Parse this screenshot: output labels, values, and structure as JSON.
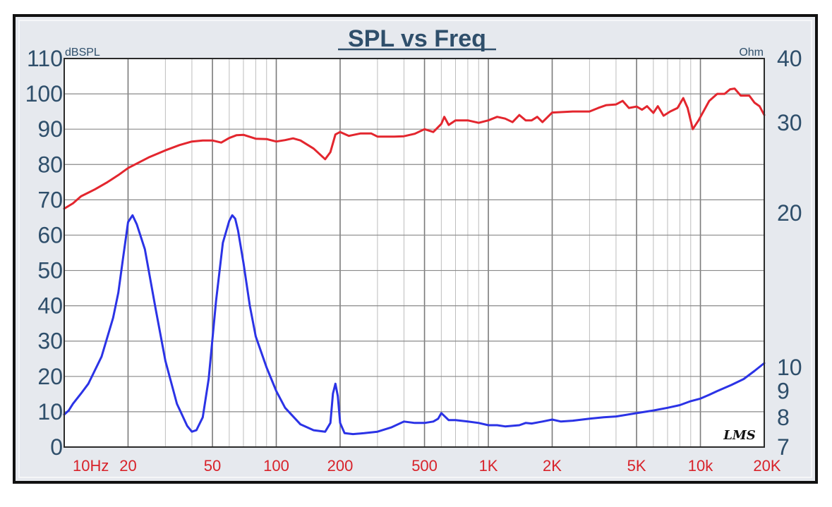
{
  "chart_data": {
    "type": "line",
    "title": "SPL vs Freq",
    "x_scale": "log",
    "xlim": [
      10,
      20000
    ],
    "x_ticks": [
      {
        "value": 10,
        "label": "10Hz"
      },
      {
        "value": 20,
        "label": "20"
      },
      {
        "value": 50,
        "label": "50"
      },
      {
        "value": 100,
        "label": "100"
      },
      {
        "value": 200,
        "label": "200"
      },
      {
        "value": 500,
        "label": "500"
      },
      {
        "value": 1000,
        "label": "1K"
      },
      {
        "value": 2000,
        "label": "2K"
      },
      {
        "value": 5000,
        "label": "5K"
      },
      {
        "value": 10000,
        "label": "10k"
      },
      {
        "value": 20000,
        "label": "20K"
      }
    ],
    "y_left": {
      "unit": "dBSPL",
      "ylim": [
        0,
        110
      ],
      "ticks": [
        0,
        10,
        20,
        30,
        40,
        50,
        60,
        70,
        80,
        90,
        100,
        110
      ]
    },
    "y_right": {
      "unit": "Ohm",
      "scale": "log",
      "ylim": [
        7,
        40
      ],
      "ticks": [
        7,
        8,
        9,
        10,
        20,
        30,
        40
      ]
    },
    "grid": true,
    "logo_text": "LMS",
    "series": [
      {
        "axis": "left",
        "color": "#e3262e",
        "x": [
          10,
          11,
          12,
          14,
          16,
          18,
          20,
          25,
          30,
          35,
          40,
          45,
          50,
          55,
          60,
          65,
          70,
          80,
          90,
          100,
          110,
          120,
          130,
          150,
          170,
          180,
          190,
          200,
          220,
          250,
          280,
          300,
          330,
          360,
          400,
          450,
          500,
          550,
          600,
          620,
          650,
          700,
          800,
          900,
          1000,
          1100,
          1200,
          1300,
          1400,
          1500,
          1600,
          1700,
          1800,
          2000,
          2500,
          3000,
          3300,
          3600,
          4000,
          4300,
          4600,
          5000,
          5300,
          5600,
          6000,
          6300,
          6700,
          7200,
          7800,
          8300,
          8700,
          9200,
          9800,
          11000,
          12000,
          13000,
          13800,
          14500,
          15500,
          17000,
          18000,
          19000,
          20000
        ],
        "y": [
          67.5,
          69,
          71,
          73,
          75,
          77,
          79,
          82,
          84,
          85.5,
          86.5,
          86.8,
          86.8,
          86.2,
          87.5,
          88.3,
          88.4,
          87.3,
          87.2,
          86.5,
          86.9,
          87.4,
          86.8,
          84.5,
          81.5,
          83.5,
          88.5,
          89.2,
          88.1,
          88.8,
          88.8,
          87.9,
          87.9,
          87.9,
          88,
          88.7,
          90,
          89.2,
          91.5,
          93.5,
          91.2,
          92.5,
          92.5,
          91.8,
          92.5,
          93.5,
          93,
          92,
          94,
          92.5,
          92.5,
          93.5,
          92,
          94.7,
          95,
          95,
          96,
          96.8,
          97,
          98,
          96,
          96.4,
          95.5,
          96.5,
          94.6,
          96.5,
          93.8,
          95,
          96,
          98.8,
          96,
          90,
          92.5,
          98,
          100,
          100,
          101.3,
          101.5,
          99.5,
          99.5,
          97.5,
          96.5,
          94
        ]
      },
      {
        "axis": "right",
        "color": "#2b33e6",
        "x": [
          10,
          10.5,
          11,
          12,
          13,
          15,
          17,
          18,
          19,
          20,
          21,
          22,
          24,
          27,
          30,
          34,
          38,
          40,
          42,
          45,
          48,
          52,
          56,
          60,
          62,
          64,
          66,
          70,
          75,
          80,
          90,
          100,
          110,
          130,
          150,
          170,
          180,
          185,
          190,
          195,
          200,
          210,
          230,
          260,
          300,
          350,
          400,
          450,
          500,
          550,
          580,
          600,
          620,
          650,
          700,
          800,
          900,
          1000,
          1100,
          1200,
          1400,
          1500,
          1600,
          1800,
          2000,
          2200,
          2500,
          3000,
          3500,
          4000,
          5000,
          6000,
          7000,
          8000,
          9000,
          10000,
          11000,
          12000,
          14000,
          16000,
          18000,
          20000
        ],
        "y": [
          8.1,
          8.25,
          8.5,
          8.9,
          9.3,
          10.5,
          12.5,
          14,
          16.5,
          19.2,
          19.8,
          19,
          17,
          13,
          10.3,
          8.5,
          7.7,
          7.5,
          7.55,
          8,
          9.5,
          13.5,
          17.5,
          19.3,
          19.8,
          19.5,
          18.5,
          16,
          13.2,
          11.5,
          10,
          9,
          8.35,
          7.75,
          7.55,
          7.5,
          7.8,
          8.9,
          9.3,
          8.8,
          7.8,
          7.45,
          7.42,
          7.45,
          7.5,
          7.65,
          7.85,
          7.8,
          7.8,
          7.85,
          7.95,
          8.15,
          8.05,
          7.9,
          7.9,
          7.85,
          7.8,
          7.72,
          7.72,
          7.68,
          7.72,
          7.8,
          7.78,
          7.85,
          7.92,
          7.85,
          7.88,
          7.95,
          8,
          8.03,
          8.15,
          8.25,
          8.35,
          8.45,
          8.6,
          8.7,
          8.85,
          9,
          9.25,
          9.5,
          9.85,
          10.2
        ]
      }
    ]
  }
}
